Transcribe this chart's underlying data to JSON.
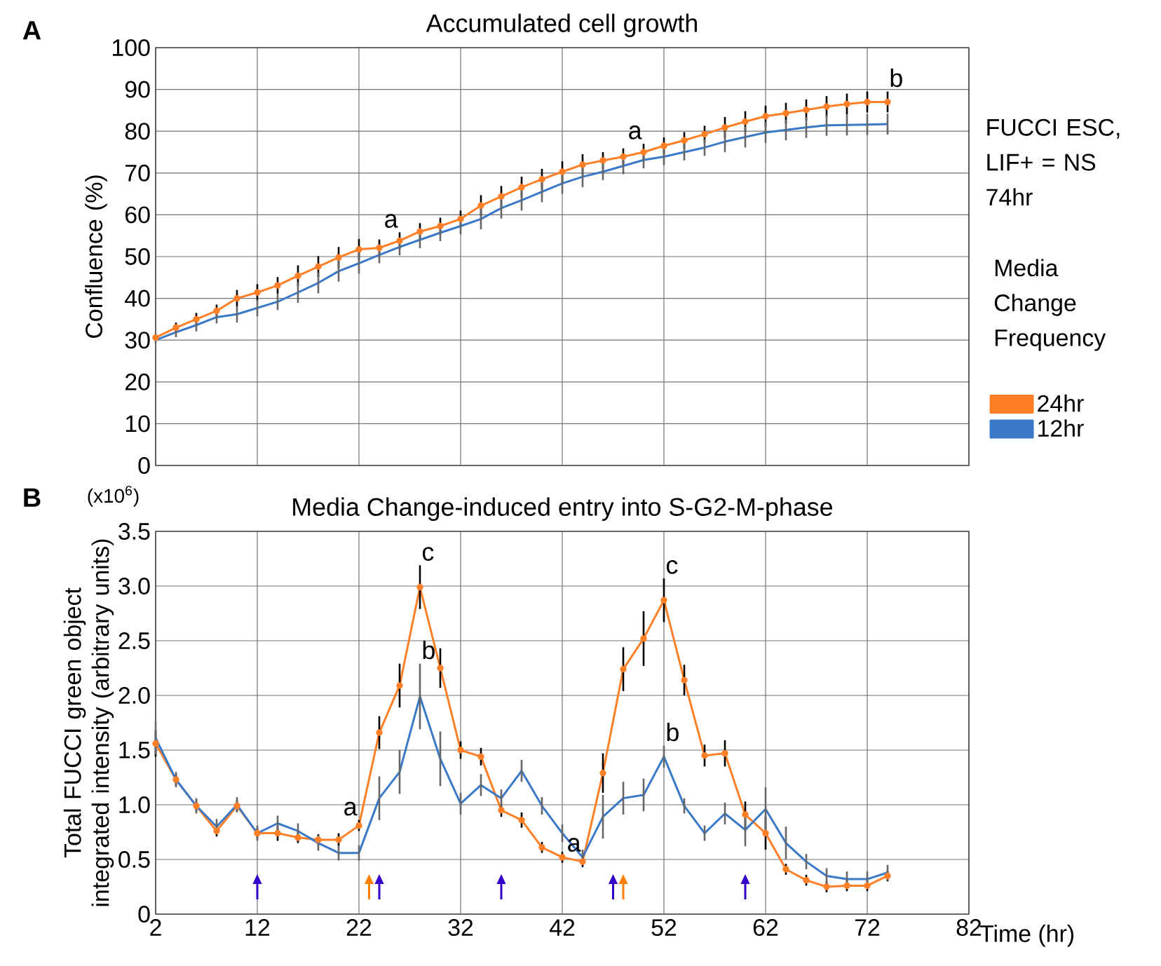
{
  "chart_data": [
    {
      "type": "line",
      "title": "Accumulated cell growth",
      "ylabel": "Confluence  (%)",
      "legend_title": "Media Change Frequency",
      "annotations": [
        "A",
        "FUCCI ESC, LIF+ = NS 74hr",
        {
          "text": "a",
          "x": 26,
          "y": 53.8
        },
        {
          "text": "a",
          "x": 50,
          "y": 75.0
        },
        {
          "text": "b",
          "x": 74,
          "y": 87.0
        }
      ],
      "x": [
        2,
        4,
        6,
        8,
        10,
        12,
        14,
        16,
        18,
        20,
        22,
        24,
        26,
        28,
        30,
        32,
        34,
        36,
        38,
        40,
        42,
        44,
        46,
        48,
        50,
        52,
        54,
        56,
        58,
        60,
        62,
        64,
        66,
        68,
        70,
        72,
        74
      ],
      "series": [
        {
          "name": "24hr",
          "color": "#ff7f27",
          "marker": "circle",
          "values": [
            30.6,
            33.0,
            35.0,
            37.0,
            40.0,
            41.4,
            43.1,
            45.4,
            47.6,
            49.8,
            51.7,
            52.1,
            53.8,
            56.0,
            57.3,
            59.0,
            62.2,
            64.4,
            66.6,
            68.5,
            70.3,
            72.0,
            73.0,
            73.9,
            75.0,
            76.5,
            77.8,
            79.3,
            80.9,
            82.3,
            83.6,
            84.3,
            85.1,
            85.9,
            86.5,
            87.0,
            87.0
          ],
          "errors": [
            0.8,
            1.2,
            1.5,
            1.5,
            2,
            2,
            2,
            2.5,
            2.5,
            2.5,
            2.5,
            2,
            2,
            2,
            2,
            2,
            2.5,
            2.5,
            2.5,
            2.5,
            2.5,
            2.5,
            2,
            2,
            2,
            2,
            2,
            2,
            2.5,
            2.5,
            2.5,
            2.5,
            2.5,
            2.5,
            2.5,
            2.5,
            2.5
          ]
        },
        {
          "name": "12hr",
          "color": "#3a78c8",
          "marker": "none",
          "values": [
            30.0,
            31.9,
            33.6,
            35.5,
            36.2,
            37.7,
            39.2,
            41.4,
            43.7,
            46.5,
            48.4,
            50.4,
            52.3,
            54.0,
            55.7,
            57.3,
            59.0,
            61.6,
            63.5,
            65.5,
            67.5,
            69.1,
            70.3,
            71.7,
            73.1,
            73.9,
            75.0,
            76.1,
            77.5,
            78.6,
            79.7,
            80.3,
            80.9,
            81.4,
            81.5,
            81.6,
            81.7
          ],
          "errors": [
            0.8,
            1.2,
            1.5,
            1.5,
            2,
            2,
            2,
            2.5,
            2.5,
            2.5,
            2.5,
            2,
            2,
            2,
            2,
            2,
            2.5,
            2.5,
            2.5,
            2.5,
            2.5,
            2.5,
            2,
            2,
            2,
            2,
            2,
            2,
            2.5,
            2.5,
            2.5,
            2.5,
            2.5,
            2.5,
            2.5,
            2.5,
            2.5
          ]
        }
      ],
      "xlim": [
        2,
        82
      ],
      "ylim": [
        0,
        100
      ],
      "xticks": [
        2,
        12,
        22,
        32,
        42,
        52,
        62,
        72,
        82
      ],
      "yticks": [
        0,
        10,
        20,
        30,
        40,
        50,
        60,
        70,
        80,
        90,
        100
      ],
      "grid": true,
      "legend": "right",
      "tick_labels": "y"
    },
    {
      "type": "line",
      "title": "Media Change-induced entry into S-G2-M-phase",
      "xlabel": "Time (hr)",
      "ylabel": "Total FUCCI green object integrated intensity (arbitrary units)",
      "annotations": [
        "B",
        "(x10$^{6}$)",
        {
          "text": "c",
          "x": 28,
          "y": 2.99
        },
        {
          "text": "b",
          "x": 28,
          "y": 1.99
        },
        {
          "text": "a",
          "x": 22,
          "y": 0.81
        },
        {
          "text": "a",
          "x": 44,
          "y": 0.48
        },
        {
          "text": "c",
          "x": 52,
          "y": 2.87
        },
        {
          "text": "b",
          "x": 52,
          "y": 1.44
        }
      ],
      "x": [
        2,
        4,
        6,
        8,
        10,
        12,
        14,
        16,
        18,
        20,
        22,
        24,
        26,
        28,
        30,
        32,
        34,
        36,
        38,
        40,
        42,
        44,
        46,
        48,
        50,
        52,
        54,
        56,
        58,
        60,
        62,
        64,
        66,
        68,
        70,
        72,
        74
      ],
      "series": [
        {
          "color": "#ff7f27",
          "marker": "circle",
          "values": [
            1.56,
            1.23,
            0.99,
            0.76,
            0.99,
            0.74,
            0.74,
            0.7,
            0.68,
            0.68,
            0.81,
            1.66,
            2.09,
            2.99,
            2.25,
            1.5,
            1.44,
            0.95,
            0.86,
            0.61,
            0.52,
            0.48,
            1.29,
            2.24,
            2.52,
            2.87,
            2.14,
            1.45,
            1.47,
            0.91,
            0.74,
            0.41,
            0.31,
            0.25,
            0.26,
            0.26,
            0.35
          ],
          "errors": [
            0.12,
            0.05,
            0.05,
            0.05,
            0.05,
            0.05,
            0.07,
            0.05,
            0.05,
            0.06,
            0.05,
            0.15,
            0.2,
            0.2,
            0.18,
            0.08,
            0.08,
            0.06,
            0.07,
            0.05,
            0.05,
            0.05,
            0.18,
            0.2,
            0.25,
            0.2,
            0.14,
            0.1,
            0.12,
            0.12,
            0.15,
            0.05,
            0.05,
            0.05,
            0.05,
            0.05,
            0.05
          ]
        },
        {
          "color": "#3a78c8",
          "marker": "none",
          "values": [
            1.61,
            1.23,
            0.99,
            0.8,
            1.0,
            0.74,
            0.83,
            0.76,
            0.65,
            0.56,
            0.56,
            1.06,
            1.3,
            1.99,
            1.42,
            1.01,
            1.18,
            1.06,
            1.31,
            0.99,
            0.74,
            0.52,
            0.89,
            1.06,
            1.09,
            1.44,
            0.99,
            0.74,
            0.92,
            0.77,
            0.96,
            0.65,
            0.48,
            0.35,
            0.32,
            0.32,
            0.38
          ],
          "errors": [
            0.15,
            0.07,
            0.07,
            0.07,
            0.07,
            0.07,
            0.07,
            0.07,
            0.07,
            0.07,
            0.07,
            0.2,
            0.2,
            0.3,
            0.25,
            0.1,
            0.1,
            0.08,
            0.1,
            0.08,
            0.08,
            0.07,
            0.2,
            0.15,
            0.15,
            0.1,
            0.07,
            0.07,
            0.1,
            0.15,
            0.2,
            0.15,
            0.07,
            0.07,
            0.07,
            0.07,
            0.07
          ]
        },
        {
          "type": "scatter",
          "color": "#3300cc",
          "marker": "triangle",
          "x": [
            12,
            24,
            36,
            47,
            60
          ],
          "values": [
            0.25,
            0.25,
            0.25,
            0.25,
            0.25
          ]
        },
        {
          "type": "scatter",
          "color": "#ff8000",
          "marker": "triangle",
          "x": [
            23,
            48
          ],
          "values": [
            0.25,
            0.25
          ]
        }
      ],
      "xlim": [
        2,
        82
      ],
      "ylim": [
        0,
        3.5
      ],
      "xticks": [
        2,
        12,
        22,
        32,
        42,
        52,
        62,
        72,
        82
      ],
      "yticks": [
        0,
        0.5,
        {
          "value": 1,
          "label": "1.0"
        },
        1.5,
        {
          "value": 2,
          "label": "2.0"
        },
        2.5,
        {
          "value": 3,
          "label": "3.0"
        },
        3.5
      ],
      "grid": true
    }
  ]
}
